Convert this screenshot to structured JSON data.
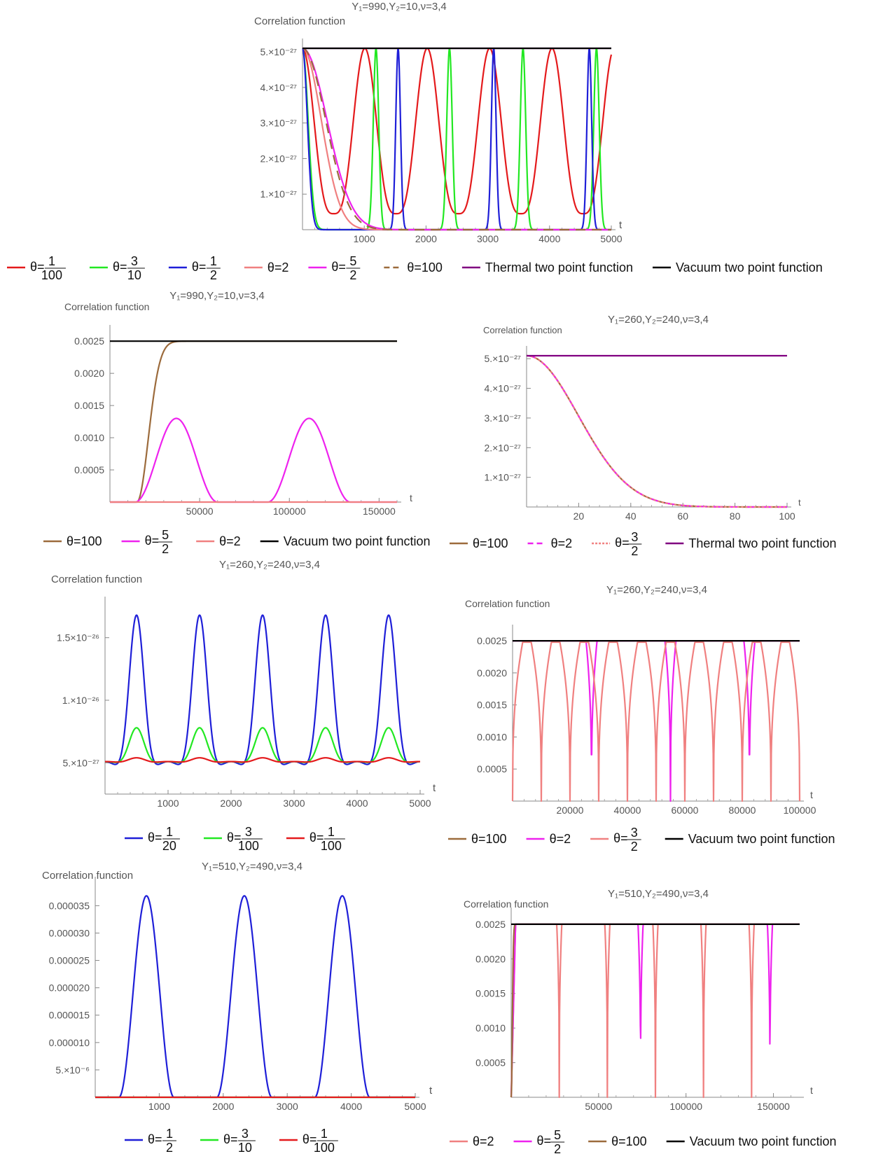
{
  "chart_data": [
    {
      "type": "line",
      "title": "Y₁=990,Y₂=10,ν=3,4",
      "ylabel": "Correlation function",
      "xlabel": "t",
      "xlim": [
        0,
        5000
      ],
      "ylim": [
        0,
        5.1e-27
      ],
      "x_ticks": [
        1000,
        2000,
        3000,
        4000,
        5000
      ],
      "x_tick_labels": [
        "1000",
        "2000",
        "3000",
        "4000",
        "5000"
      ],
      "y_ticks": [
        1e-27,
        2e-27,
        3e-27,
        4e-27,
        5e-27
      ],
      "y_tick_labels": [
        "1.×10⁻²⁷",
        "2.×10⁻²⁷",
        "3.×10⁻²⁷",
        "4.×10⁻²⁷",
        "5.×10⁻²⁷"
      ],
      "legend_position": "bottom",
      "series": [
        {
          "name": "θ=1/100",
          "color": "#e41a1c",
          "shape": "periodic-dip",
          "amplitude": 5.1e-27,
          "min": 4.5e-28,
          "period": 1010,
          "phase": 0,
          "width": 0.5
        },
        {
          "name": "θ=3/10",
          "color": "#22e822",
          "shape": "periodic-peak",
          "amplitude": 5.1e-27,
          "min": 0,
          "period": 1190,
          "phase": 1190,
          "width": 0.09
        },
        {
          "name": "θ=1/2",
          "color": "#1f1fd8",
          "shape": "periodic-peak",
          "amplitude": 5.1e-27,
          "min": 0,
          "period": 1548,
          "phase": 1548,
          "width": 0.06
        },
        {
          "name": "θ=2",
          "color": "#f08080",
          "shape": "decay",
          "amplitude": 5.1e-27,
          "scale": 430
        },
        {
          "name": "θ=5/2",
          "color": "#ee22ee",
          "shape": "decay",
          "amplitude": 5.1e-27,
          "scale": 560
        },
        {
          "name": "θ=100",
          "color": "#9c6b3c",
          "shape": "decay",
          "dashed": true,
          "amplitude": 5.1e-27,
          "scale": 530
        },
        {
          "name": "Thermal two point function",
          "color": "#800080",
          "shape": "constant",
          "value": 5.1e-27
        },
        {
          "name": "Vacuum two point function",
          "color": "#000000",
          "shape": "constant",
          "value": 5.1e-27
        }
      ]
    },
    {
      "type": "line",
      "title": "Y₁=990,Y₂=10,ν=3,4",
      "ylabel": "Correlation function",
      "xlabel": "t",
      "xlim": [
        0,
        160000
      ],
      "ylim": [
        0,
        0.0026
      ],
      "x_ticks": [
        50000,
        100000,
        150000
      ],
      "x_tick_labels": [
        "50000",
        "100000",
        "150000"
      ],
      "y_ticks": [
        0.0005,
        0.001,
        0.0015,
        0.002,
        0.0025
      ],
      "y_tick_labels": [
        "0.0005",
        "0.0010",
        "0.0015",
        "0.0020",
        "0.0025"
      ],
      "legend_position": "bottom",
      "series": [
        {
          "name": "θ=100",
          "color": "#9c6b3c",
          "shape": "rise",
          "amplitude": 0.0025,
          "start": 15000,
          "scale": 9000
        },
        {
          "name": "θ=5/2",
          "color": "#ee22ee",
          "shape": "bumps",
          "amplitude": 0.0013,
          "centers": [
            37000,
            111000
          ],
          "halfwidth": 23000
        },
        {
          "name": "θ=2",
          "color": "#f08080",
          "shape": "constant",
          "value": 0
        },
        {
          "name": "Vacuum two point function",
          "color": "#000000",
          "shape": "constant",
          "value": 0.0025
        }
      ]
    },
    {
      "type": "line",
      "title": "Y₁=260,Y₂=240,ν=3,4",
      "ylabel": "Correlation function",
      "xlabel": "t",
      "xlim": [
        0,
        100
      ],
      "ylim": [
        0,
        5.1e-27
      ],
      "x_ticks": [
        20,
        40,
        60,
        80,
        100
      ],
      "x_tick_labels": [
        "20",
        "40",
        "60",
        "80",
        "100"
      ],
      "y_ticks": [
        1e-27,
        2e-27,
        3e-27,
        4e-27,
        5e-27
      ],
      "y_tick_labels": [
        "1.×10⁻²⁷",
        "2.×10⁻²⁷",
        "3.×10⁻²⁷",
        "4.×10⁻²⁷",
        "5.×10⁻²⁷"
      ],
      "legend_position": "bottom",
      "series": [
        {
          "name": "θ=100",
          "color": "#9c6b3c",
          "shape": "decay",
          "amplitude": 5.1e-27,
          "scale": 28
        },
        {
          "name": "θ=2",
          "color": "#ee22ee",
          "shape": "decay",
          "dashed": true,
          "amplitude": 5.1e-27,
          "scale": 28
        },
        {
          "name": "θ=3/2",
          "color": "#f08080",
          "shape": "decay",
          "dotted": true,
          "amplitude": 5.1e-27,
          "scale": 28
        },
        {
          "name": "Thermal two point function",
          "color": "#800080",
          "shape": "constant",
          "value": 5.1e-27
        }
      ]
    },
    {
      "type": "line",
      "title": "Y₁=260,Y₂=240,ν=3,4",
      "ylabel": "Correlation function",
      "xlabel": "t",
      "xlim": [
        0,
        5000
      ],
      "ylim": [
        2.5e-27,
        1.75e-26
      ],
      "x_ticks": [
        1000,
        2000,
        3000,
        4000,
        5000
      ],
      "x_tick_labels": [
        "1000",
        "2000",
        "3000",
        "4000",
        "5000"
      ],
      "y_ticks": [
        5e-27,
        1e-26,
        1.5e-26
      ],
      "y_tick_labels": [
        "5.×10⁻²⁷",
        "1.×10⁻²⁶",
        "1.5×10⁻²⁶"
      ],
      "legend_position": "bottom",
      "series": [
        {
          "name": "θ=1/20",
          "color": "#1f1fd8",
          "shape": "oscillation",
          "base": 5.1e-27,
          "peak": 1.68e-26,
          "trough": 4.4e-27,
          "period": 1000,
          "phase": 500
        },
        {
          "name": "θ=3/100",
          "color": "#22e822",
          "shape": "oscillation",
          "base": 5.1e-27,
          "peak": 7.8e-27,
          "trough": 4.9e-27,
          "period": 1000,
          "phase": 500
        },
        {
          "name": "θ=1/100",
          "color": "#e41a1c",
          "shape": "oscillation",
          "base": 5.1e-27,
          "peak": 5.4e-27,
          "trough": 5e-27,
          "period": 1000,
          "phase": 500
        }
      ]
    },
    {
      "type": "line",
      "title": "Y₁=260,Y₂=240,ν=3,4",
      "ylabel": "Correlation function",
      "xlabel": "t",
      "xlim": [
        0,
        100000
      ],
      "ylim": [
        0,
        0.0026
      ],
      "x_ticks": [
        20000,
        40000,
        60000,
        80000,
        100000
      ],
      "x_tick_labels": [
        "20000",
        "40000",
        "60000",
        "80000",
        "100000"
      ],
      "y_ticks": [
        0.0005,
        0.001,
        0.0015,
        0.002,
        0.0025
      ],
      "y_tick_labels": [
        "0.0005",
        "0.0010",
        "0.0015",
        "0.0020",
        "0.0025"
      ],
      "legend_position": "bottom",
      "series": [
        {
          "name": "θ=100",
          "color": "#9c6b3c",
          "shape": "constant",
          "value": 0.0025
        },
        {
          "name": "θ=2",
          "color": "#ee22ee",
          "shape": "dips",
          "value": 0.0025,
          "dips": [
            27500,
            55000,
            82500
          ],
          "halfwidth": 1200
        },
        {
          "name": "θ=3/2",
          "color": "#f08080",
          "shape": "dips",
          "value": 0.00248,
          "dips": [
            0,
            10000,
            20000,
            30000,
            40000,
            50000,
            60000,
            70000,
            80000,
            90000,
            100000
          ],
          "halfwidth": 2200
        },
        {
          "name": "Vacuum two point function",
          "color": "#000000",
          "shape": "constant",
          "value": 0.0025
        }
      ]
    },
    {
      "type": "line",
      "title": "Y₁=510,Y₂=490,ν=3,4",
      "ylabel": "Correlation function",
      "xlabel": "t",
      "xlim": [
        0,
        5000
      ],
      "ylim": [
        0,
        3.85e-05
      ],
      "x_ticks": [
        1000,
        2000,
        3000,
        4000,
        5000
      ],
      "x_tick_labels": [
        "1000",
        "2000",
        "3000",
        "4000",
        "5000"
      ],
      "y_ticks": [
        5e-06,
        1e-05,
        1.5e-05,
        2e-05,
        2.5e-05,
        3e-05,
        3.5e-05
      ],
      "y_tick_labels": [
        "5.×10⁻⁶",
        "0.000010",
        "0.000015",
        "0.000020",
        "0.000025",
        "0.000030",
        "0.000035"
      ],
      "legend_position": "bottom",
      "series": [
        {
          "name": "θ=1/2",
          "color": "#1f1fd8",
          "shape": "bumps",
          "amplitude": 3.68e-05,
          "centers": [
            800,
            2330,
            3860
          ],
          "halfwidth": 430
        },
        {
          "name": "θ=3/10",
          "color": "#22e822",
          "shape": "constant",
          "value": 0
        },
        {
          "name": "θ=1/100",
          "color": "#e41a1c",
          "shape": "constant",
          "value": 0
        }
      ]
    },
    {
      "type": "line",
      "title": "Y₁=510,Y₂=490,ν=3,4",
      "ylabel": "Correlation function",
      "xlabel": "t",
      "xlim": [
        0,
        165000
      ],
      "ylim": [
        0,
        0.0026
      ],
      "x_ticks": [
        50000,
        100000,
        150000
      ],
      "x_tick_labels": [
        "50000",
        "100000",
        "150000"
      ],
      "y_ticks": [
        0.0005,
        0.001,
        0.0015,
        0.002,
        0.0025
      ],
      "y_tick_labels": [
        "0.0005",
        "0.0010",
        "0.0015",
        "0.0020",
        "0.0025"
      ],
      "legend_position": "bottom",
      "series": [
        {
          "name": "θ=2",
          "color": "#f08080",
          "shape": "dips",
          "value": 0.0025,
          "start_rise": 2500,
          "dips": [
            27500,
            55000,
            82500,
            110000,
            137500
          ],
          "halfwidth": 900
        },
        {
          "name": "θ=5/2",
          "color": "#ee22ee",
          "shape": "dips",
          "value": 0.0025,
          "start_rise": 2500,
          "dips": [
            74000,
            148000
          ],
          "halfwidth": 900
        },
        {
          "name": "θ=100",
          "color": "#9c6b3c",
          "shape": "rise",
          "amplitude": 0.0025,
          "start": 0,
          "scale": 900
        },
        {
          "name": "Vacuum two point function",
          "color": "#000000",
          "shape": "constant",
          "value": 0.0025
        }
      ]
    }
  ]
}
